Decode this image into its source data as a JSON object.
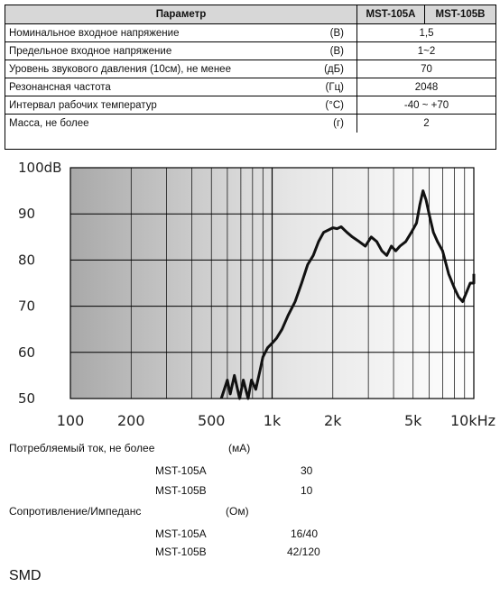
{
  "table": {
    "header": {
      "param": "Параметр",
      "a": "MST-105A",
      "b": "MST-105B"
    },
    "rows": [
      {
        "param": "Номинальное входное напряжение",
        "unit": "(В)",
        "value": "1,5"
      },
      {
        "param": "Предельное входное напряжение",
        "unit": "(В)",
        "value": "1~2"
      },
      {
        "param": "Уровень звукового давления (10см), не менее",
        "unit": "(дБ)",
        "value": "70"
      },
      {
        "param": "Резонансная частота",
        "unit": "(Гц)",
        "value": "2048"
      },
      {
        "param": "Интервал рабочих температур",
        "unit": "(°C)",
        "value": "-40 ~ +70"
      },
      {
        "param": "Масса, не более",
        "unit": "(г)",
        "value": "2"
      }
    ]
  },
  "chart_data": {
    "type": "line",
    "x_scale": "log",
    "xlim": [
      100,
      10000
    ],
    "ylim": [
      50,
      100
    ],
    "grid": true,
    "ytick_labels": [
      "100dB",
      "90",
      "80",
      "70",
      "60",
      "50"
    ],
    "ytick_values": [
      100,
      90,
      80,
      70,
      60,
      50
    ],
    "xtick_labels": [
      "100",
      "200",
      "500",
      "1k",
      "2k",
      "5k",
      "10kHz"
    ],
    "xtick_values": [
      100,
      200,
      500,
      1000,
      2000,
      5000,
      10000
    ],
    "series": [
      {
        "x": [
          560,
          600,
          620,
          650,
          690,
          720,
          760,
          790,
          830,
          870,
          900,
          950,
          1000,
          1050,
          1120,
          1200,
          1300,
          1400,
          1500,
          1600,
          1700,
          1800,
          1900,
          2000,
          2100,
          2200,
          2350,
          2500,
          2700,
          2900,
          3100,
          3300,
          3500,
          3700,
          3900,
          4100,
          4300,
          4600,
          4900,
          5200,
          5400,
          5600,
          5800,
          6000,
          6300,
          6600,
          7000,
          7500,
          8000,
          8400,
          8800,
          9200,
          9600,
          10000,
          10500,
          11000
        ],
        "y": [
          50,
          54,
          51,
          55,
          50,
          54,
          50,
          54,
          52,
          56,
          59,
          61,
          62,
          63,
          65,
          68,
          71,
          75,
          79,
          81,
          84,
          86,
          86.5,
          87,
          86.8,
          87.2,
          86,
          85,
          84,
          83,
          85,
          84,
          82,
          81,
          83,
          82,
          83,
          84,
          86,
          88,
          92,
          95,
          93,
          90,
          86,
          84,
          82,
          77,
          74,
          72,
          71,
          73,
          75,
          75,
          76,
          77
        ]
      }
    ]
  },
  "consumption": {
    "label": "Потребляемый ток, не более",
    "unit": "(мА)",
    "items": [
      {
        "model": "MST-105A",
        "value": "30"
      },
      {
        "model": "MST-105B",
        "value": "10"
      }
    ]
  },
  "impedance": {
    "label": "Сопротивление/Импеданс",
    "unit": "(Ом)",
    "items": [
      {
        "model": "MST-105A",
        "value": "16/40"
      },
      {
        "model": "MST-105B",
        "value": "42/120"
      }
    ]
  },
  "footer": {
    "label": "SMD"
  }
}
